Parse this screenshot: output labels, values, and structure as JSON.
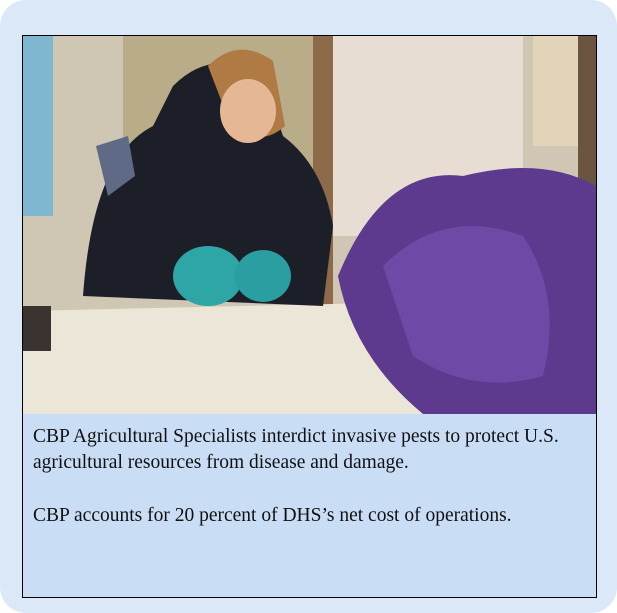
{
  "caption": {
    "paragraphs": [
      "CBP Agricultural Specialists interdict invasive pests to protect U.S. agricultural resources from disease and damage.",
      "CBP accounts for 20 percent of DHS’s net cost of operations."
    ]
  }
}
